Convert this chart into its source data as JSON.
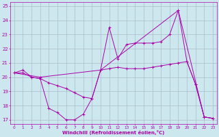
{
  "xlabel": "Windchill (Refroidissement éolien,°C)",
  "background_color": "#cce8ee",
  "grid_color": "#aabbcc",
  "line_color": "#aa00aa",
  "xlim": [
    -0.5,
    23.5
  ],
  "ylim": [
    16.7,
    25.3
  ],
  "yticks": [
    17,
    18,
    19,
    20,
    21,
    22,
    23,
    24,
    25
  ],
  "xticks": [
    0,
    1,
    2,
    3,
    4,
    5,
    6,
    7,
    8,
    9,
    10,
    11,
    12,
    13,
    14,
    15,
    16,
    17,
    18,
    19,
    20,
    21,
    22,
    23
  ],
  "series": [
    {
      "x": [
        0,
        1,
        2,
        3,
        4,
        5,
        6,
        7,
        8,
        9,
        10,
        11,
        12,
        13,
        14,
        15,
        16,
        17,
        18,
        19,
        20,
        21,
        22,
        23
      ],
      "y": [
        20.3,
        20.5,
        20.0,
        19.9,
        17.8,
        17.5,
        17.0,
        17.0,
        17.4,
        18.5,
        20.5,
        23.5,
        21.3,
        22.3,
        22.4,
        22.4,
        22.4,
        22.5,
        23.0,
        24.7,
        21.1,
        19.5,
        17.2,
        17.1
      ]
    },
    {
      "x": [
        0,
        1,
        2,
        3,
        4,
        5,
        6,
        7,
        8,
        9,
        10,
        11,
        12,
        13,
        14,
        15,
        16,
        17,
        18,
        19,
        20,
        21,
        22,
        23
      ],
      "y": [
        20.3,
        20.3,
        20.0,
        19.9,
        19.6,
        19.4,
        19.2,
        18.9,
        18.6,
        18.5,
        20.5,
        20.6,
        20.7,
        20.6,
        20.6,
        20.6,
        20.7,
        20.8,
        20.9,
        21.0,
        21.1,
        19.5,
        17.2,
        17.1
      ]
    },
    {
      "x": [
        0,
        3,
        10,
        19,
        22,
        23
      ],
      "y": [
        20.3,
        20.0,
        20.5,
        24.7,
        17.2,
        17.1
      ]
    }
  ]
}
